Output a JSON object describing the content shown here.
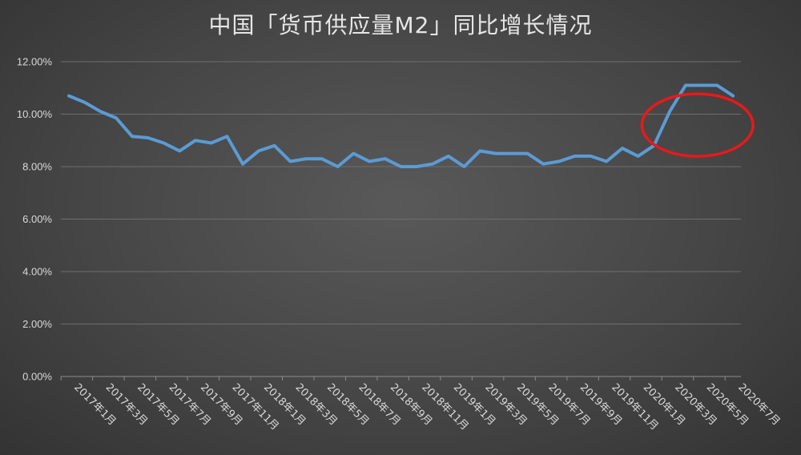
{
  "chart_data": {
    "type": "line",
    "title": "中国「货币供应量M2」同比增长情况",
    "xlabel": "",
    "ylabel": "",
    "ylim": [
      0,
      12
    ],
    "yticks": [
      "0.00%",
      "2.00%",
      "4.00%",
      "6.00%",
      "8.00%",
      "10.00%",
      "12.00%"
    ],
    "grid": true,
    "legend": "none",
    "colors": {
      "line": "#5b9bd5",
      "highlight": "#e8191a",
      "grid": "#6e6e6e",
      "text": "#d9d9d9"
    },
    "x_tick_labels": [
      "2017年1月",
      "2017年3月",
      "2017年5月",
      "2017年7月",
      "2017年9月",
      "2017年11月",
      "2018年1月",
      "2018年3月",
      "2018年5月",
      "2018年7月",
      "2018年9月",
      "2018年11月",
      "2019年1月",
      "2019年3月",
      "2019年5月",
      "2019年7月",
      "2019年9月",
      "2019年11月",
      "2020年1月",
      "2020年3月",
      "2020年5月",
      "2020年7月"
    ],
    "categories": [
      "2017-01",
      "2017-02",
      "2017-03",
      "2017-04",
      "2017-05",
      "2017-06",
      "2017-07",
      "2017-08",
      "2017-09",
      "2017-10",
      "2017-11",
      "2017-12",
      "2018-01",
      "2018-02",
      "2018-03",
      "2018-04",
      "2018-05",
      "2018-06",
      "2018-07",
      "2018-08",
      "2018-09",
      "2018-10",
      "2018-11",
      "2018-12",
      "2019-01",
      "2019-02",
      "2019-03",
      "2019-04",
      "2019-05",
      "2019-06",
      "2019-07",
      "2019-08",
      "2019-09",
      "2019-10",
      "2019-11",
      "2019-12",
      "2020-01",
      "2020-02",
      "2020-03",
      "2020-04",
      "2020-05",
      "2020-06",
      "2020-07"
    ],
    "series": [
      {
        "values": [
          10.7,
          10.45,
          10.1,
          9.85,
          9.15,
          9.1,
          8.9,
          8.6,
          9.0,
          8.9,
          9.15,
          8.1,
          8.6,
          8.8,
          8.2,
          8.3,
          8.3,
          8.0,
          8.5,
          8.2,
          8.3,
          8.0,
          8.0,
          8.1,
          8.4,
          8.0,
          8.6,
          8.5,
          8.5,
          8.5,
          8.1,
          8.2,
          8.4,
          8.4,
          8.2,
          8.7,
          8.4,
          8.8,
          10.1,
          11.1,
          11.1,
          11.1,
          10.7
        ]
      }
    ],
    "annotations": [
      {
        "type": "ellipse-highlight",
        "target": "2020-02 to 2020-07"
      }
    ]
  }
}
